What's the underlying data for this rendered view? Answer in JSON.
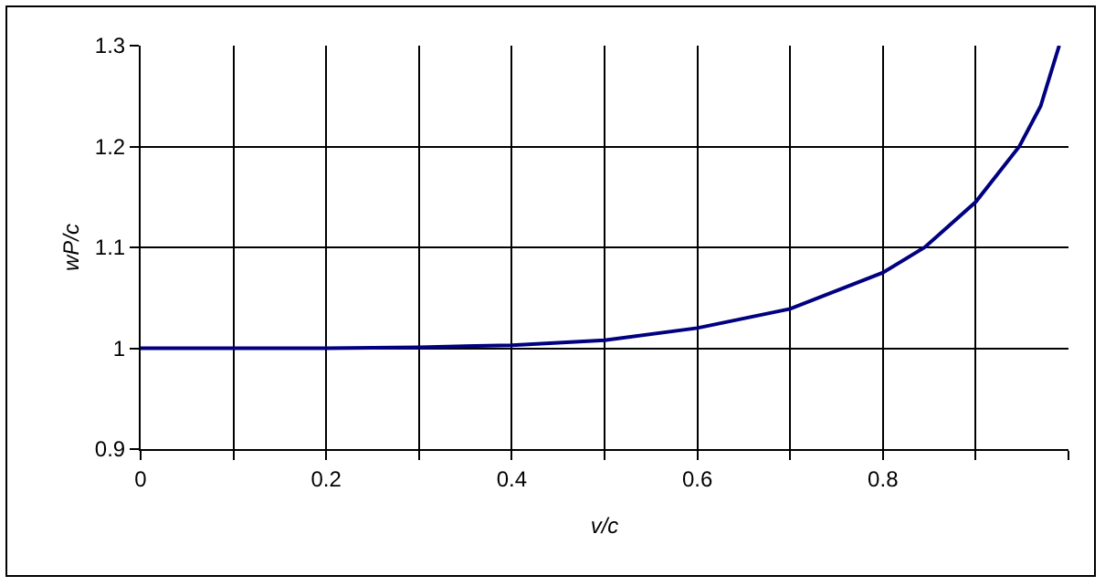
{
  "chart_data": {
    "type": "line",
    "xlabel": "v/c",
    "ylabel": "wP/c",
    "x": [
      0,
      0.1,
      0.2,
      0.3,
      0.4,
      0.5,
      0.6,
      0.7,
      0.8,
      0.845,
      0.9,
      0.947,
      0.97,
      0.99
    ],
    "series": [
      {
        "color": "#000080",
        "values": [
          1,
          1,
          1,
          1.001,
          1.003,
          1.008,
          1.02,
          1.039,
          1.075,
          1.1,
          1.145,
          1.2,
          1.24,
          1.3
        ]
      }
    ],
    "xlim": [
      0,
      1
    ],
    "xticks": [
      0,
      {
        "value": 0.1,
        "label": null
      },
      0.2,
      {
        "value": 0.3,
        "label": null
      },
      0.4,
      {
        "value": 0.5,
        "label": null
      },
      0.6,
      {
        "value": 0.7,
        "label": null
      },
      0.8,
      {
        "value": 0.9,
        "label": null
      },
      {
        "value": 1,
        "label": null
      }
    ],
    "ylim": [
      0.9,
      1.3
    ],
    "yticks": [
      0.9,
      1,
      1.1,
      1.2,
      1.3
    ],
    "grid": true,
    "marker": "none",
    "line_style": "solid"
  }
}
